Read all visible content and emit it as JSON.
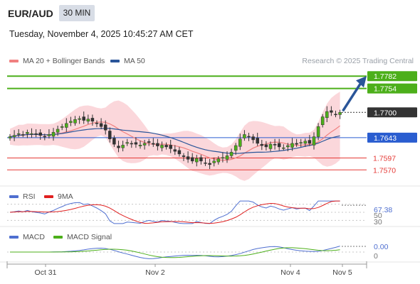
{
  "header": {
    "pair": "EUR/AUD",
    "timeframe": "30 MIN",
    "datetime": "Tuesday, November 4, 2025 10:45:27 AM CET"
  },
  "legend": {
    "ma20": "MA 20 + Bollinger Bands",
    "ma50": "MA 50",
    "copyright": "Research © 2025 Trading Central",
    "colors": {
      "ma20": "#f08080",
      "ma50": "#2a5599",
      "bands": "#f9c9cf"
    }
  },
  "chart_data": [
    {
      "type": "candlestick",
      "title": "",
      "ylim": [
        1.754,
        1.78
      ],
      "x_ticks": [
        "Oct 31",
        "Nov 2",
        "Nov 4",
        "Nov 5"
      ],
      "levels": [
        {
          "value": 1.7782,
          "label": "1.7782",
          "kind": "target",
          "color": "#4caf1a"
        },
        {
          "value": 1.7754,
          "label": "1.7754",
          "kind": "target",
          "color": "#4caf1a"
        },
        {
          "value": 1.77,
          "label": "1.7700",
          "kind": "last_price",
          "color": "#333333"
        },
        {
          "value": 1.7643,
          "label": "1.7643",
          "kind": "pivot",
          "color": "#2a5dd0"
        },
        {
          "value": 1.7597,
          "label": "1.7597",
          "kind": "support",
          "color": "#e53935"
        },
        {
          "value": 1.757,
          "label": "1.7570",
          "kind": "support",
          "color": "#e53935"
        }
      ],
      "close_path": [
        1.7645,
        1.7648,
        1.7652,
        1.765,
        1.7655,
        1.7652,
        1.765,
        1.7648,
        1.7645,
        1.765,
        1.7655,
        1.7662,
        1.7668,
        1.7675,
        1.768,
        1.7684,
        1.7686,
        1.7682,
        1.7685,
        1.768,
        1.7675,
        1.7668,
        1.766,
        1.764,
        1.7628,
        1.762,
        1.7626,
        1.7632,
        1.763,
        1.7628,
        1.7626,
        1.763,
        1.7632,
        1.7628,
        1.7624,
        1.7626,
        1.7622,
        1.7618,
        1.7612,
        1.7606,
        1.76,
        1.7594,
        1.759,
        1.7596,
        1.759,
        1.7585,
        1.7582,
        1.759,
        1.7595,
        1.7598,
        1.7602,
        1.761,
        1.7625,
        1.764,
        1.765,
        1.7645,
        1.7638,
        1.763,
        1.7625,
        1.7622,
        1.7628,
        1.7626,
        1.7622,
        1.762,
        1.7625,
        1.763,
        1.7628,
        1.7632,
        1.7635,
        1.763,
        1.7645,
        1.7668,
        1.769,
        1.7702,
        1.77,
        1.7695,
        1.77
      ]
    },
    {
      "type": "line",
      "title": "",
      "series": [
        {
          "name": "RSI",
          "color": "#4f6fd0"
        },
        {
          "name": "9MA",
          "color": "#e02020"
        }
      ],
      "levels": [
        {
          "value": 67.38,
          "label": "67.38"
        },
        {
          "value": 50,
          "label": "50"
        },
        {
          "value": 30,
          "label": "30"
        }
      ],
      "ylim": [
        20,
        80
      ]
    },
    {
      "type": "line",
      "title": "",
      "series": [
        {
          "name": "MACD",
          "color": "#4f6fd0"
        },
        {
          "name": "MACD Signal",
          "color": "#4caf1a"
        }
      ],
      "levels": [
        {
          "value": 0.0,
          "label": "0.00"
        },
        {
          "value": 0,
          "label": "0"
        }
      ]
    }
  ]
}
